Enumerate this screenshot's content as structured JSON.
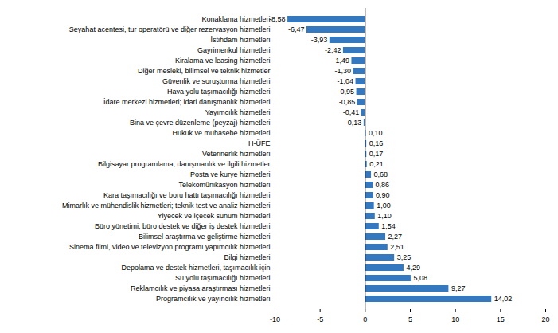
{
  "chart_data": {
    "type": "bar",
    "orientation": "horizontal",
    "categories": [
      "Konaklama hizmetleri",
      "Seyahat acentesi, tur operatörü ve diğer rezervasyon hizmetleri",
      "İstihdam hizmetleri",
      "Gayrimenkul hizmetleri",
      "Kiralama ve leasing hizmetleri",
      "Diğer mesleki, bilimsel ve teknik hizmetler",
      "Güvenlik ve soruşturma hizmetleri",
      "Hava yolu taşımacılığı hizmetleri",
      "İdare merkezi hizmetleri; idari danışmanlık hizmetleri",
      "Yayımcılık hizmetleri",
      "Bina ve çevre düzenleme (peyzaj) hizmetleri",
      "Hukuk ve muhasebe hizmetleri",
      "H-ÜFE",
      "Veterinerlik hizmetleri",
      "Bilgisayar programlama, danışmanlık ve ilgili hizmetler",
      "Posta ve kurye hizmetleri",
      "Telekomünikasyon hizmetleri",
      "Kara taşımacılığı ve boru hattı taşımacılığı hizmetleri",
      "Mimarlık ve mühendislik hizmetleri; teknik test ve analiz hizmetleri",
      "Yiyecek ve içecek sunum hizmetleri",
      "Büro yönetimi, büro destek ve diğer iş destek hizmetleri",
      "Bilimsel araştırma ve geliştirme hizmetleri",
      "Sinema filmi, video ve televizyon programı yapımcılık hizmetleri",
      "Bilgi hizmetleri",
      "Depolama ve destek hizmetleri, taşımacılık için",
      "Su yolu taşımacılığı hizmetleri",
      "Reklamcılık ve piyasa araştırması hizmetleri",
      "Programcılık ve yayıncılık hizmetleri"
    ],
    "values": [
      -8.58,
      -6.47,
      -3.93,
      -2.42,
      -1.49,
      -1.3,
      -1.04,
      -0.95,
      -0.85,
      -0.41,
      -0.13,
      0.1,
      0.16,
      0.17,
      0.21,
      0.68,
      0.86,
      0.9,
      1.0,
      1.1,
      1.54,
      2.27,
      2.51,
      3.25,
      4.29,
      5.08,
      9.27,
      14.02
    ],
    "value_labels": [
      "-8,58",
      "-6,47",
      "-3,93",
      "-2,42",
      "-1,49",
      "-1,30",
      "-1,04",
      "-0,95",
      "-0,85",
      "-0,41",
      "-0,13",
      "0,10",
      "0,16",
      "0,17",
      "0,21",
      "0,68",
      "0,86",
      "0,90",
      "1,00",
      "1,10",
      "1,54",
      "2,27",
      "2,51",
      "3,25",
      "4,29",
      "5,08",
      "9,27",
      "14,02"
    ],
    "color": "#3479c0",
    "xlim": [
      -10,
      20
    ],
    "xticks": [
      -10,
      -5,
      0,
      5,
      10,
      15,
      20
    ],
    "grid": false,
    "data_labels": true
  }
}
